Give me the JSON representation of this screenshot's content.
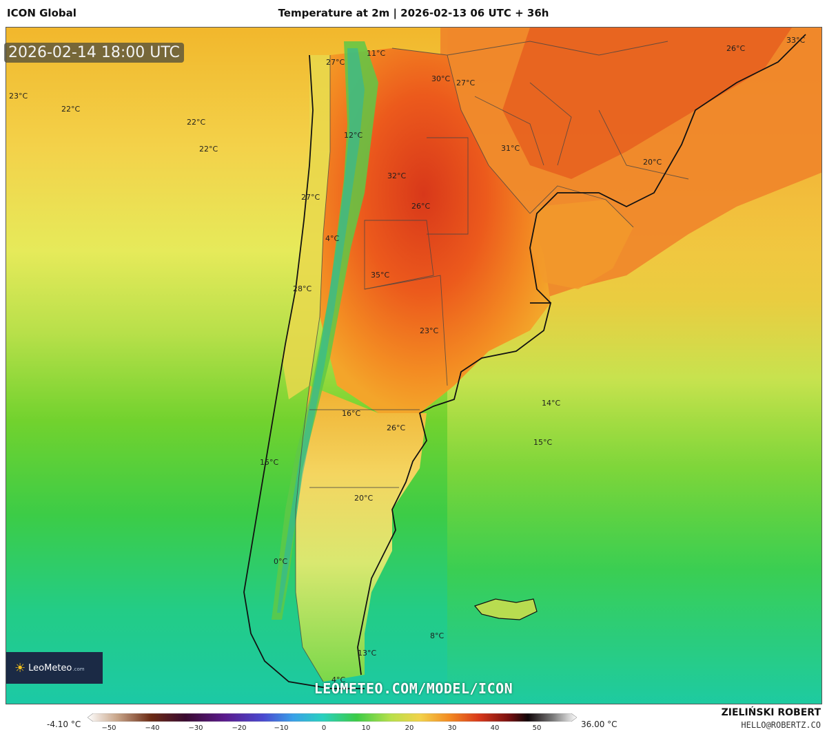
{
  "header": {
    "model": "ICON Global",
    "title": "Temperature at 2m | 2026-02-13 06 UTC + 36h"
  },
  "map": {
    "valid_time": "2026-02-14 18:00 UTC",
    "watermark": "LEOMETEO.COM/MODEL/ICON",
    "temperature_labels": [
      "23°C",
      "22°C",
      "22°C",
      "22°C",
      "27°C",
      "11°C",
      "30°C",
      "27°C",
      "33°C",
      "26°C",
      "12°C",
      "31°C",
      "20°C",
      "32°C",
      "27°C",
      "26°C",
      "4°C",
      "35°C",
      "28°C",
      "23°C",
      "14°C",
      "16°C",
      "26°C",
      "15°C",
      "15°C",
      "20°C",
      "0°C",
      "8°C",
      "13°C",
      "4°C"
    ]
  },
  "logo": {
    "name": "LeoMeteo",
    "suffix": ".com",
    "icon": "sun-icon"
  },
  "legend": {
    "min_label": "-4.10 °C",
    "max_label": "36.00 °C",
    "ticks": [
      "−50",
      "−40",
      "−30",
      "−20",
      "−10",
      "0",
      "10",
      "20",
      "30",
      "40",
      "50"
    ]
  },
  "credit": {
    "author": "ZIELIŃSKI ROBERT",
    "email": "HELLO@ROBERTZ.CO"
  }
}
